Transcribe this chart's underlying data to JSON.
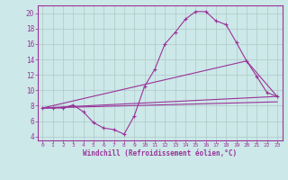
{
  "xlabel": "Windchill (Refroidissement éolien,°C)",
  "background_color": "#cce8e8",
  "grid_color": "#b0c8c8",
  "line_color": "#993399",
  "x_ticks": [
    0,
    1,
    2,
    3,
    4,
    5,
    6,
    7,
    8,
    9,
    10,
    11,
    12,
    13,
    14,
    15,
    16,
    17,
    18,
    19,
    20,
    21,
    22,
    23
  ],
  "y_ticks": [
    4,
    6,
    8,
    10,
    12,
    14,
    16,
    18,
    20
  ],
  "xlim": [
    -0.5,
    23.5
  ],
  "ylim": [
    3.5,
    21.0
  ],
  "line1_x": [
    0,
    1,
    2,
    3,
    4,
    5,
    6,
    7,
    8,
    9,
    10,
    11,
    12,
    13,
    14,
    15,
    16,
    17,
    18,
    19,
    20,
    21,
    22,
    23
  ],
  "line1_y": [
    7.7,
    7.7,
    7.7,
    8.1,
    7.2,
    5.8,
    5.1,
    4.9,
    4.3,
    6.7,
    10.5,
    12.7,
    16.0,
    17.5,
    19.2,
    20.2,
    20.2,
    19.0,
    18.5,
    16.2,
    13.8,
    11.8,
    9.7,
    9.2
  ],
  "line2_x": [
    0,
    23
  ],
  "line2_y": [
    7.7,
    9.2
  ],
  "line3_x": [
    0,
    23
  ],
  "line3_y": [
    7.7,
    8.5
  ],
  "line4_x": [
    0,
    20,
    23
  ],
  "line4_y": [
    7.7,
    13.8,
    9.2
  ]
}
